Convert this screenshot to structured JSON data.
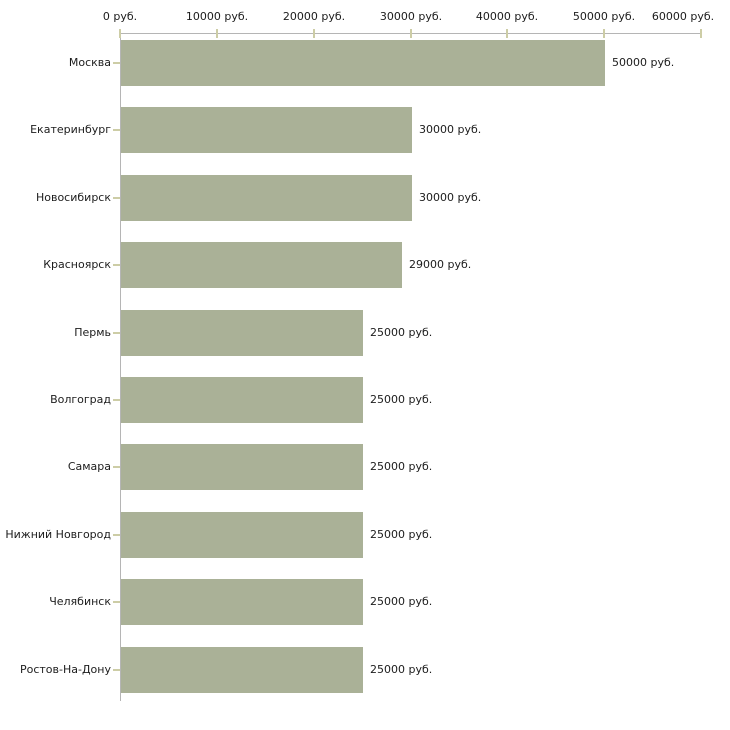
{
  "chart_data": {
    "type": "bar",
    "orientation": "horizontal",
    "title": "",
    "categories": [
      "Москва",
      "Екатеринбург",
      "Новосибирск",
      "Красноярск",
      "Пермь",
      "Волгоград",
      "Самара",
      "Нижний Новгород",
      "Челябинск",
      "Ростов-На-Дону"
    ],
    "values": [
      50000,
      30000,
      30000,
      29000,
      25000,
      25000,
      25000,
      25000,
      25000,
      25000
    ],
    "value_labels": [
      "50000 руб.",
      "30000 руб.",
      "30000 руб.",
      "29000 руб.",
      "25000 руб.",
      "25000 руб.",
      "25000 руб.",
      "25000 руб.",
      "25000 руб.",
      "25000 руб."
    ],
    "x_ticks": [
      0,
      10000,
      20000,
      30000,
      40000,
      50000,
      60000
    ],
    "x_tick_labels": [
      "0 руб.",
      "10000 руб.",
      "20000 руб.",
      "30000 руб.",
      "40000 руб.",
      "50000 руб.",
      "60000 руб."
    ],
    "xlim": [
      0,
      60000
    ],
    "unit": "руб.",
    "ylabel": "",
    "xlabel": "",
    "legend": null,
    "grid": false
  },
  "colors": {
    "bar": "#aab197",
    "axis_line": "#b5b5b5",
    "tick": "#cdcda6",
    "text": "#1c1c1c",
    "background": "#ffffff"
  }
}
